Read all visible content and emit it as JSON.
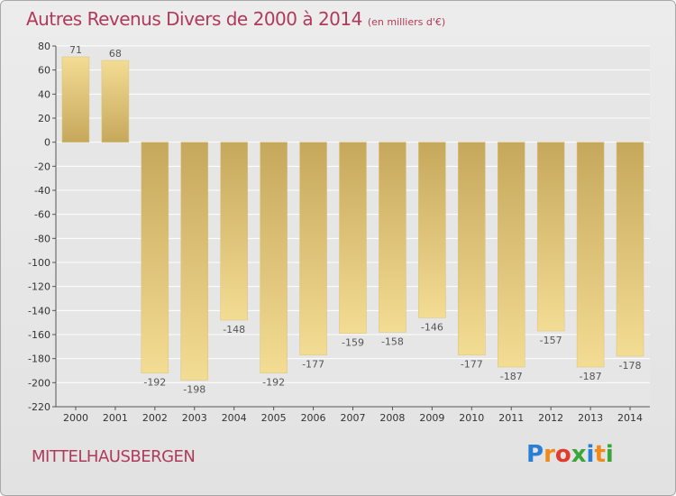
{
  "title": "Autres Revenus Divers de 2000 à 2014",
  "unit_label": "(en milliers d'€)",
  "commune": "MITTELHAUSBERGEN",
  "logo": {
    "text": "Proxiti",
    "letters": [
      "P",
      "r",
      "o",
      "x",
      "i",
      "t",
      "i"
    ],
    "colors": [
      "#2a7fd4",
      "#f08a1c",
      "#e23b2e",
      "#3aa63a",
      "#2a7fd4",
      "#f08a1c",
      "#3aa63a"
    ]
  },
  "colors": {
    "bar_light": "#f3dc93",
    "bar_dark": "#c6a85c",
    "title": "#b03a5b",
    "grid": "#ffffff"
  },
  "chart_data": {
    "type": "bar",
    "title": "Autres Revenus Divers de 2000 à 2014 (en milliers d'€)",
    "xlabel": "",
    "ylabel": "",
    "ylim": [
      -220,
      80
    ],
    "yticks": [
      80,
      60,
      40,
      20,
      0,
      -20,
      -40,
      -60,
      -80,
      -100,
      -120,
      -140,
      -160,
      -180,
      -200,
      -220
    ],
    "categories": [
      "2000",
      "2001",
      "2002",
      "2003",
      "2004",
      "2005",
      "2006",
      "2007",
      "2008",
      "2009",
      "2010",
      "2011",
      "2012",
      "2013",
      "2014"
    ],
    "values": [
      71,
      68,
      -192,
      -198,
      -148,
      -192,
      -177,
      -159,
      -158,
      -146,
      -177,
      -187,
      -157,
      -187,
      -178
    ],
    "value_labels": [
      "71",
      "68",
      "-192",
      "-198",
      "-148",
      "-192",
      "-177",
      "-159",
      "-158",
      "-146",
      "-177",
      "-187",
      "-157",
      "-187",
      "-178"
    ]
  }
}
